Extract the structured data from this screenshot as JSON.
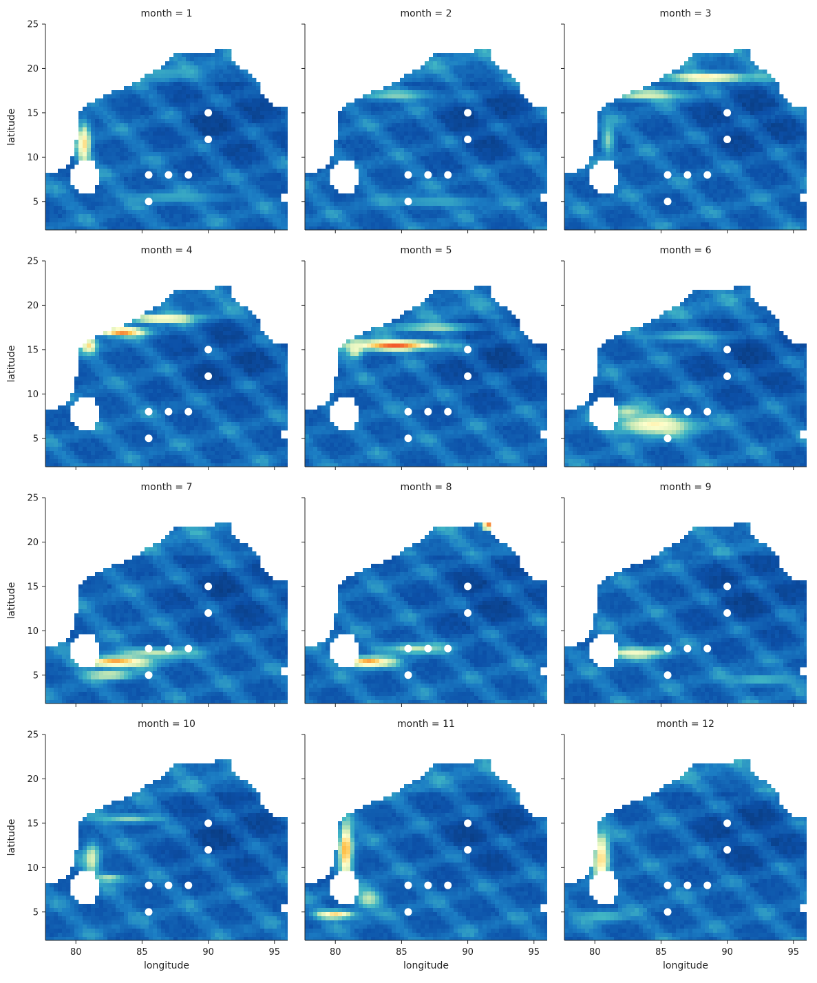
{
  "chart_data": {
    "type": "heatmap",
    "layout": "3x4 small multiples",
    "shared_axes": true,
    "xlabel": "longitude",
    "ylabel": "latitude",
    "xlim": [
      77.7,
      96.0
    ],
    "ylim": [
      1.8,
      25.0
    ],
    "xticks": [
      80,
      85,
      90,
      95
    ],
    "yticks": [
      5,
      10,
      15,
      20,
      25
    ],
    "colormap": [
      "#08306b",
      "#0c50a8",
      "#1c7ec4",
      "#41b6c4",
      "#c7e9b4",
      "#ffffcc",
      "#fec44f",
      "#f03b20",
      "#800026"
    ],
    "station_marker_color": "#ffffff",
    "stations": [
      {
        "lon": 90.0,
        "lat": 15.0
      },
      {
        "lon": 90.0,
        "lat": 12.0
      },
      {
        "lon": 85.5,
        "lat": 8.0
      },
      {
        "lon": 87.0,
        "lat": 8.0
      },
      {
        "lon": 88.5,
        "lat": 8.0
      },
      {
        "lon": 85.5,
        "lat": 5.0
      }
    ],
    "panels": [
      {
        "title": "month = 1",
        "month": 1,
        "features": [
          {
            "lon": 80.6,
            "lat": 11.5,
            "rx": 0.5,
            "ry": 2.4,
            "v": 0.7
          },
          {
            "lon": 87.5,
            "lat": 5.5,
            "rx": 4,
            "ry": 0.6,
            "v": 0.35
          },
          {
            "lon": 86.0,
            "lat": 19.5,
            "rx": 3,
            "ry": 0.6,
            "v": 0.35
          }
        ]
      },
      {
        "title": "month = 2",
        "month": 2,
        "features": [
          {
            "lon": 84.5,
            "lat": 17.0,
            "rx": 3,
            "ry": 0.6,
            "v": 0.45
          },
          {
            "lon": 87.5,
            "lat": 5.0,
            "rx": 4,
            "ry": 0.6,
            "v": 0.35
          }
        ]
      },
      {
        "title": "month = 3",
        "month": 3,
        "features": [
          {
            "lon": 88.5,
            "lat": 19.0,
            "rx": 3,
            "ry": 0.5,
            "v": 0.7
          },
          {
            "lon": 84.0,
            "lat": 17.0,
            "rx": 3,
            "ry": 0.6,
            "v": 0.55
          },
          {
            "lon": 81.0,
            "lat": 12.0,
            "rx": 0.5,
            "ry": 2,
            "v": 0.45
          }
        ]
      },
      {
        "title": "month = 4",
        "month": 4,
        "features": [
          {
            "lon": 83.5,
            "lat": 17.0,
            "rx": 1.8,
            "ry": 0.5,
            "v": 0.85
          },
          {
            "lon": 86.5,
            "lat": 18.5,
            "rx": 2.5,
            "ry": 0.5,
            "v": 0.7
          },
          {
            "lon": 81.0,
            "lat": 15.5,
            "rx": 0.6,
            "ry": 0.8,
            "v": 0.7
          }
        ]
      },
      {
        "title": "month = 5",
        "month": 5,
        "features": [
          {
            "lon": 84.5,
            "lat": 15.5,
            "rx": 3.5,
            "ry": 0.6,
            "v": 0.85
          },
          {
            "lon": 81.5,
            "lat": 15.0,
            "rx": 0.6,
            "ry": 1,
            "v": 0.6
          },
          {
            "lon": 87.5,
            "lat": 17.5,
            "rx": 3,
            "ry": 0.5,
            "v": 0.5
          }
        ]
      },
      {
        "title": "month = 6",
        "month": 6,
        "features": [
          {
            "lon": 84.5,
            "lat": 6.5,
            "rx": 3,
            "ry": 1.2,
            "v": 0.65
          },
          {
            "lon": 82.5,
            "lat": 8.0,
            "rx": 1.2,
            "ry": 0.8,
            "v": 0.5
          },
          {
            "lon": 87.0,
            "lat": 16.5,
            "rx": 3,
            "ry": 0.6,
            "v": 0.4
          }
        ]
      },
      {
        "title": "month = 7",
        "month": 7,
        "features": [
          {
            "lon": 83.0,
            "lat": 6.5,
            "rx": 2.5,
            "ry": 0.6,
            "v": 0.8
          },
          {
            "lon": 82.5,
            "lat": 5.0,
            "rx": 2,
            "ry": 0.5,
            "v": 0.55
          },
          {
            "lon": 86.0,
            "lat": 7.5,
            "rx": 3,
            "ry": 0.6,
            "v": 0.5
          }
        ]
      },
      {
        "title": "month = 8",
        "month": 8,
        "features": [
          {
            "lon": 82.5,
            "lat": 6.5,
            "rx": 1.8,
            "ry": 0.6,
            "v": 0.8
          },
          {
            "lon": 86.0,
            "lat": 8.0,
            "rx": 2.5,
            "ry": 0.6,
            "v": 0.5
          },
          {
            "lon": 91.5,
            "lat": 21.8,
            "rx": 0.4,
            "ry": 0.35,
            "v": 1.0
          }
        ]
      },
      {
        "title": "month = 9",
        "month": 9,
        "features": [
          {
            "lon": 83.0,
            "lat": 7.5,
            "rx": 2.5,
            "ry": 0.6,
            "v": 0.6
          },
          {
            "lon": 92.5,
            "lat": 4.5,
            "rx": 2.5,
            "ry": 0.6,
            "v": 0.4
          }
        ]
      },
      {
        "title": "month = 10",
        "month": 10,
        "features": [
          {
            "lon": 81.2,
            "lat": 11.0,
            "rx": 0.6,
            "ry": 1.8,
            "v": 0.55
          },
          {
            "lon": 82.5,
            "lat": 8.8,
            "rx": 1.2,
            "ry": 0.5,
            "v": 0.5
          },
          {
            "lon": 84.0,
            "lat": 15.5,
            "rx": 2.5,
            "ry": 0.5,
            "v": 0.45
          }
        ]
      },
      {
        "title": "month = 11",
        "month": 11,
        "features": [
          {
            "lon": 80.8,
            "lat": 12.0,
            "rx": 0.5,
            "ry": 3.2,
            "v": 0.8
          },
          {
            "lon": 80.0,
            "lat": 4.7,
            "rx": 1.5,
            "ry": 0.5,
            "v": 0.7
          },
          {
            "lon": 82.5,
            "lat": 6.5,
            "rx": 1,
            "ry": 1.2,
            "v": 0.5
          }
        ]
      },
      {
        "title": "month = 12",
        "month": 12,
        "features": [
          {
            "lon": 80.5,
            "lat": 11.0,
            "rx": 0.6,
            "ry": 3,
            "v": 0.72
          },
          {
            "lon": 80.5,
            "lat": 4.5,
            "rx": 2,
            "ry": 0.6,
            "v": 0.4
          }
        ]
      }
    ]
  }
}
